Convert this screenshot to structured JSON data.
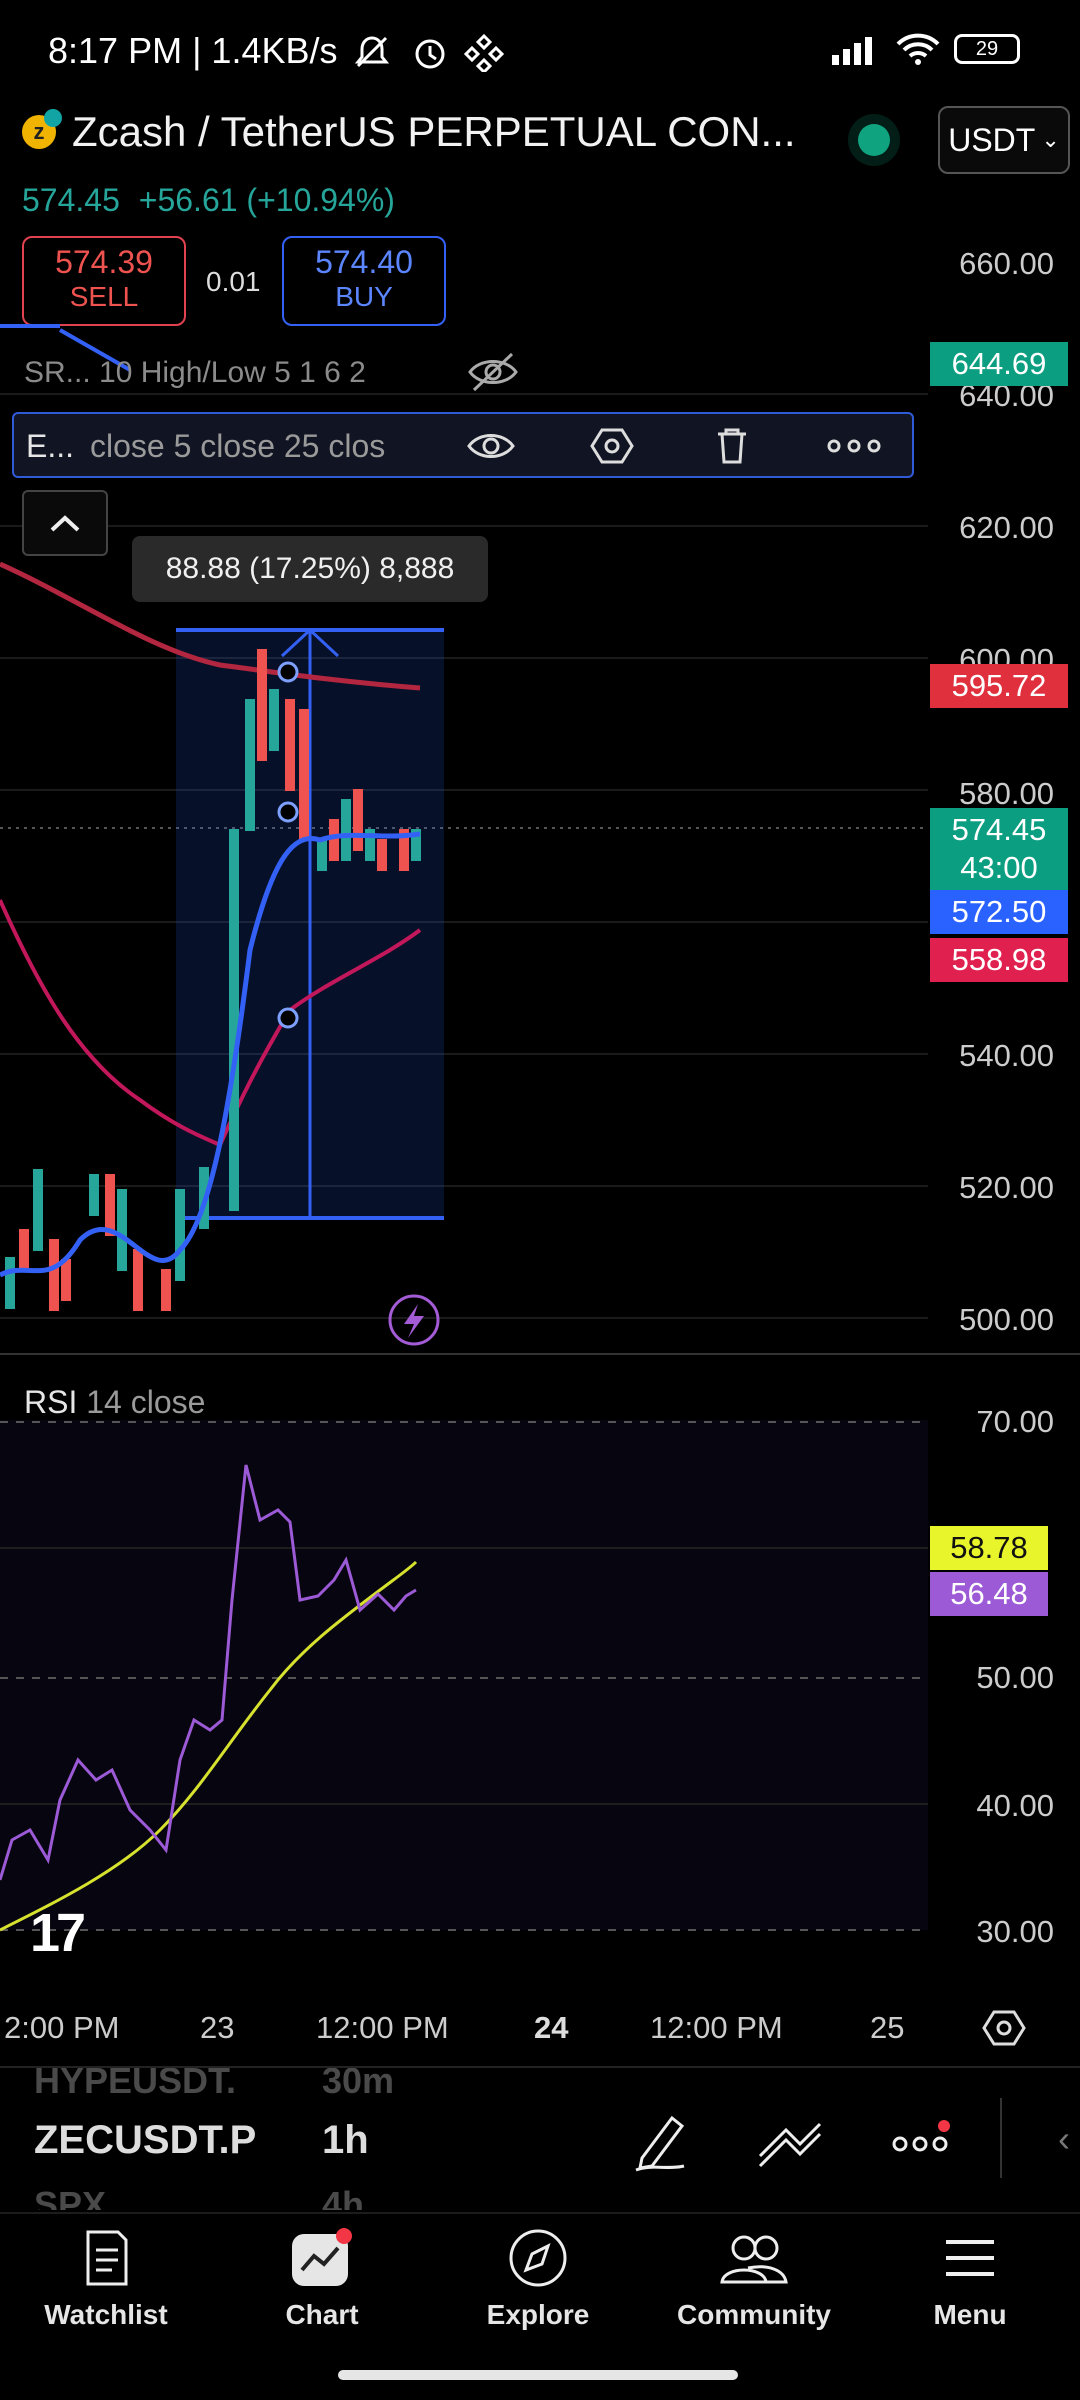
{
  "status_bar": {
    "time": "8:17 PM | 1.4KB/s",
    "battery": "29",
    "icons": [
      "mute-icon",
      "alarm-icon",
      "binance-icon",
      "signal-icon",
      "wifi-icon",
      "battery-icon"
    ]
  },
  "header": {
    "symbol_title": "Zcash / TetherUS PERPETUAL CON...",
    "currency": "USDT",
    "last_price": "574.45",
    "change": "+56.61",
    "change_pct": "(+10.94%)",
    "change_color": "#26a69a"
  },
  "trade": {
    "sell_price": "574.39",
    "sell_label": "SELL",
    "spread": "0.01",
    "buy_price": "574.40",
    "buy_label": "BUY"
  },
  "indicators": {
    "sr_label": "SR...  10 High/Low 5 1 6 2",
    "ema_name": "E...",
    "ema_params": "close 5 close 25 clos"
  },
  "measure_tooltip": "88.88 (17.25%) 8,888",
  "price_scale": {
    "labels": [
      "660.00",
      "640.00",
      "620.00",
      "600.00",
      "580.00",
      "540.00",
      "520.00",
      "500.00"
    ],
    "tags": [
      {
        "text": "644.69",
        "color": "#0b9e80"
      },
      {
        "text": "595.72",
        "color": "#e0303e"
      },
      {
        "text": "574.45",
        "color": "#0b9e80"
      },
      {
        "text": "43:00",
        "color": "#0b9e80"
      },
      {
        "text": "572.50",
        "color": "#2962ff"
      },
      {
        "text": "558.98",
        "color": "#e0214f"
      }
    ]
  },
  "rsi": {
    "name": "RSI",
    "params": "14 close",
    "scale": [
      "70.00",
      "50.00",
      "40.00",
      "30.00"
    ],
    "tags": [
      {
        "text": "58.78",
        "color": "#e8f52a"
      },
      {
        "text": "56.48",
        "color": "#9c5ad6"
      }
    ]
  },
  "time_axis": [
    "2:00 PM",
    "23",
    "12:00 PM",
    "24",
    "12:00 PM",
    "25"
  ],
  "toolbar": {
    "symbol_prev": "HYPEUSDT.",
    "symbol_current": "ZECUSDT.P",
    "symbol_next": "SPX",
    "interval_prev": "30m",
    "interval_current": "1h",
    "interval_next": "4h"
  },
  "nav": {
    "items": [
      {
        "label": "Watchlist"
      },
      {
        "label": "Chart"
      },
      {
        "label": "Explore"
      },
      {
        "label": "Community"
      },
      {
        "label": "Menu"
      }
    ]
  }
}
